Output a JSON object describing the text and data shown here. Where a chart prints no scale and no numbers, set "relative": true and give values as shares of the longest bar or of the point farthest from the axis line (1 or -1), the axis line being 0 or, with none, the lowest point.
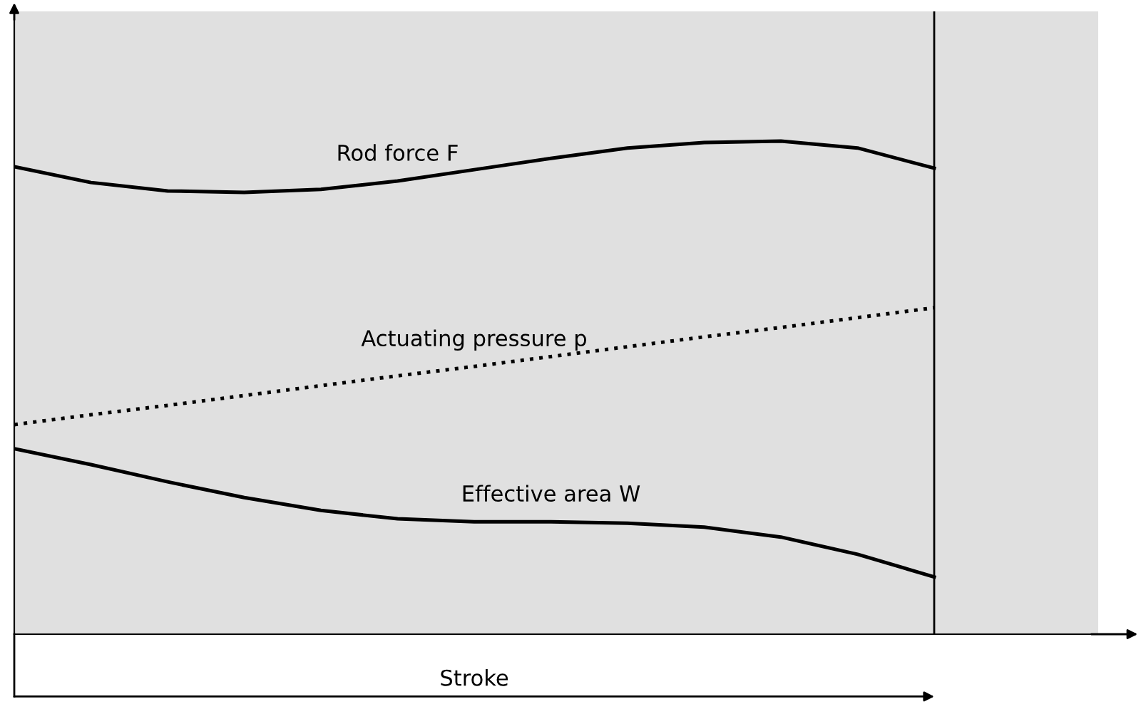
{
  "chart_data": {
    "type": "line",
    "relative": true,
    "xlabel": "Stroke",
    "categories": [
      null,
      null,
      null,
      null,
      null,
      null,
      null,
      null,
      null,
      null,
      null,
      null,
      null
    ],
    "series": [
      {
        "name": "Rod force F",
        "color": "#000000",
        "line_style": "solid",
        "values": [
          0.948,
          0.916,
          0.899,
          0.896,
          0.902,
          0.919,
          0.942,
          0.965,
          0.986,
          0.997,
          1,
          0.986,
          0.945
        ]
      },
      {
        "name": "Actuating pressure p",
        "color": "#000000",
        "line_style": "dotted",
        "values": [
          0.425,
          0.445,
          0.464,
          0.484,
          0.504,
          0.524,
          0.543,
          0.563,
          0.583,
          0.603,
          0.622,
          0.642,
          0.662
        ]
      },
      {
        "name": "Effective area W",
        "color": "#000000",
        "line_style": "solid",
        "values": [
          0.376,
          0.344,
          0.309,
          0.277,
          0.251,
          0.234,
          0.228,
          0.228,
          0.225,
          0.217,
          0.197,
          0.162,
          0.116
        ]
      }
    ],
    "grid": false,
    "legend": false,
    "marker": "none"
  }
}
